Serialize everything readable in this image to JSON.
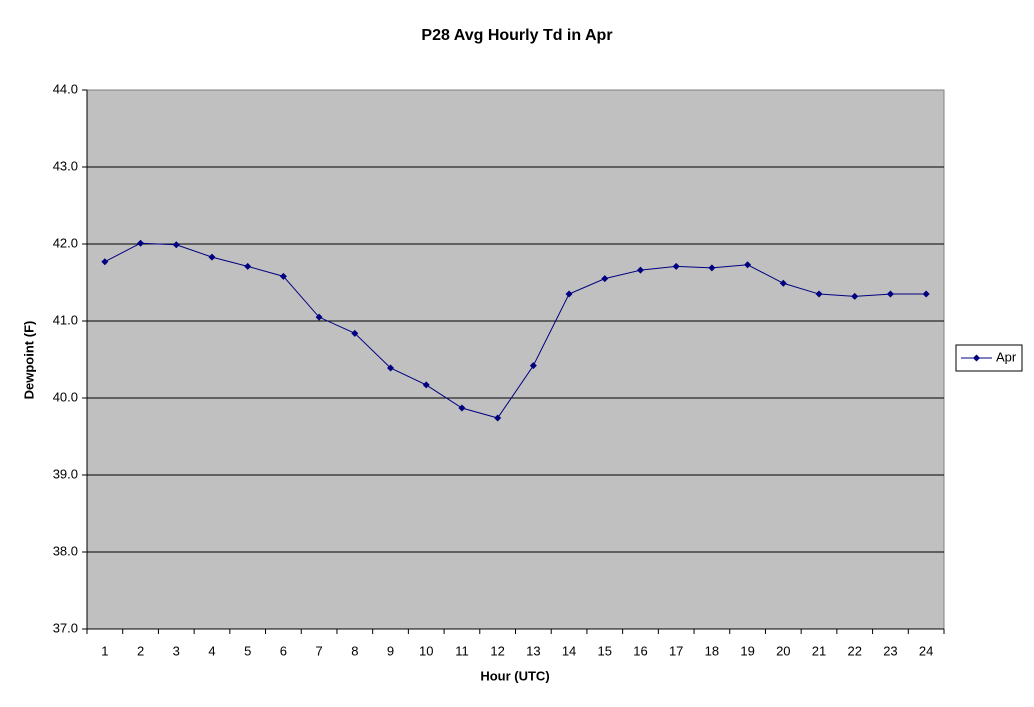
{
  "chart_data": {
    "type": "line",
    "title": "P28 Avg Hourly Td in Apr",
    "x_label": "Hour (UTC)",
    "y_label": "Dewpoint (F)",
    "categories": [
      "1",
      "2",
      "3",
      "4",
      "5",
      "6",
      "7",
      "8",
      "9",
      "10",
      "11",
      "12",
      "13",
      "14",
      "15",
      "16",
      "17",
      "18",
      "19",
      "20",
      "21",
      "22",
      "23",
      "24"
    ],
    "series": [
      {
        "name": "Apr",
        "color": "#000080",
        "values": [
          41.77,
          42.01,
          41.99,
          41.83,
          41.71,
          41.58,
          41.05,
          40.84,
          40.39,
          40.17,
          39.87,
          39.74,
          40.42,
          41.35,
          41.55,
          41.66,
          41.71,
          41.69,
          41.73,
          41.49,
          41.35,
          41.32,
          41.35,
          41.35
        ]
      }
    ],
    "ylim": [
      37,
      44
    ],
    "yticks": [
      {
        "value": 37,
        "label": "37.0"
      },
      {
        "value": 38,
        "label": "38.0"
      },
      {
        "value": 39,
        "label": "39.0"
      },
      {
        "value": 40,
        "label": "40.0"
      },
      {
        "value": 41,
        "label": "41.0"
      },
      {
        "value": 42,
        "label": "42.0"
      },
      {
        "value": 43,
        "label": "43.0"
      },
      {
        "value": 44,
        "label": "44.0"
      }
    ],
    "grid": true,
    "legend": "right"
  }
}
